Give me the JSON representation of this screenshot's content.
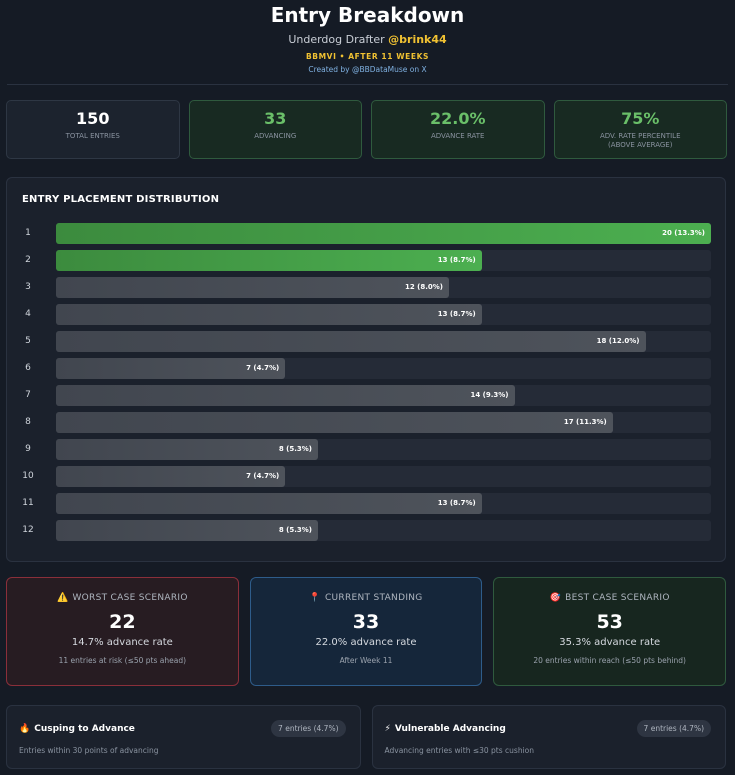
{
  "header": {
    "title": "Entry Breakdown",
    "subtitle_prefix": "Underdog Drafter ",
    "handle": "@brink44",
    "tag": "BBMVI • AFTER 11 WEEKS",
    "credit": "Created by @BBDataMuse on X"
  },
  "stats": [
    {
      "value": "150",
      "label": "TOTAL ENTRIES",
      "label2": ""
    },
    {
      "value": "33",
      "label": "ADVANCING",
      "label2": ""
    },
    {
      "value": "22.0%",
      "label": "ADVANCE RATE",
      "label2": ""
    },
    {
      "value": "75%",
      "label": "ADV. RATE PERCENTILE",
      "label2": "(ABOVE AVERAGE)"
    }
  ],
  "chart_data": {
    "type": "bar",
    "orientation": "horizontal",
    "title": "ENTRY PLACEMENT DISTRIBUTION",
    "categories": [
      "1",
      "2",
      "3",
      "4",
      "5",
      "6",
      "7",
      "8",
      "9",
      "10",
      "11",
      "12"
    ],
    "values": [
      20,
      13,
      12,
      13,
      18,
      7,
      14,
      17,
      8,
      7,
      13,
      8
    ],
    "labels": [
      "20 (13.3%)",
      "13 (8.7%)",
      "12 (8.0%)",
      "13 (8.7%)",
      "18 (12.0%)",
      "7 (4.7%)",
      "14 (9.3%)",
      "17 (11.3%)",
      "8 (5.3%)",
      "7 (4.7%)",
      "13 (8.7%)",
      "8 (5.3%)"
    ],
    "advancing_places": [
      "1",
      "2"
    ],
    "colors": {
      "advancing": "#4caf50",
      "other": "#4a4f58",
      "track": "#252b37"
    },
    "xlim": [
      0,
      20
    ]
  },
  "scenarios": {
    "worst": {
      "icon": "⚠️",
      "title": "WORST CASE SCENARIO",
      "value": "22",
      "rate": "14.7% advance rate",
      "note": "11 entries at risk (≤50 pts ahead)"
    },
    "current": {
      "icon": "📍",
      "title": "CURRENT STANDING",
      "value": "33",
      "rate": "22.0% advance rate",
      "note": "After Week 11"
    },
    "best": {
      "icon": "🎯",
      "title": "BEST CASE SCENARIO",
      "value": "53",
      "rate": "35.3% advance rate",
      "note": "20 entries within reach (≤50 pts behind)"
    }
  },
  "bottom": {
    "cusping": {
      "icon": "🔥",
      "title": "Cusping to Advance",
      "pill": "7 entries (4.7%)",
      "desc": "Entries within 30 points of advancing"
    },
    "vulnerable": {
      "icon": "⚡",
      "title": "Vulnerable Advancing",
      "pill": "7 entries (4.7%)",
      "desc": "Advancing entries with ≤30 pts cushion"
    }
  }
}
